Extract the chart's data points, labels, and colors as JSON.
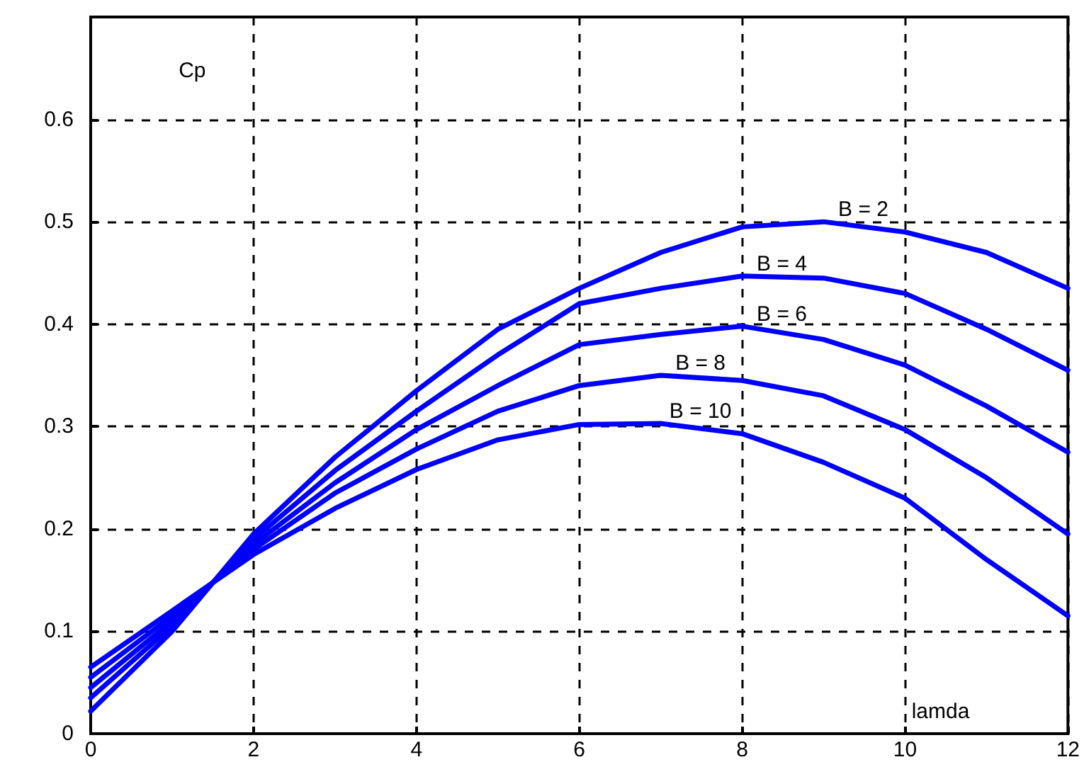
{
  "chart_data": {
    "type": "line",
    "xlabel": "lamda",
    "ylabel": "Cp",
    "x": [
      0,
      1,
      2,
      3,
      4,
      5,
      6,
      7,
      8,
      9,
      10,
      11,
      12
    ],
    "series": [
      {
        "name": "B = 2",
        "color": "#0000ff",
        "values": [
          0.022,
          0.1,
          0.195,
          0.27,
          0.335,
          0.395,
          0.435,
          0.47,
          0.495,
          0.5,
          0.49,
          0.47,
          0.435
        ]
      },
      {
        "name": "B = 4",
        "color": "#0000ff",
        "values": [
          0.035,
          0.105,
          0.19,
          0.257,
          0.315,
          0.37,
          0.42,
          0.435,
          0.447,
          0.445,
          0.43,
          0.395,
          0.355
        ]
      },
      {
        "name": "B = 6",
        "color": "#0000ff",
        "values": [
          0.045,
          0.11,
          0.185,
          0.245,
          0.297,
          0.34,
          0.38,
          0.39,
          0.398,
          0.385,
          0.36,
          0.32,
          0.275
        ]
      },
      {
        "name": "B = 8",
        "color": "#0000ff",
        "values": [
          0.055,
          0.115,
          0.18,
          0.235,
          0.278,
          0.315,
          0.34,
          0.35,
          0.345,
          0.33,
          0.297,
          0.25,
          0.195
        ]
      },
      {
        "name": "B = 10",
        "color": "#0000ff",
        "values": [
          0.065,
          0.12,
          0.175,
          0.22,
          0.258,
          0.287,
          0.302,
          0.303,
          0.293,
          0.265,
          0.23,
          0.17,
          0.115
        ]
      }
    ],
    "xlim": [
      0,
      12
    ],
    "xticks": [
      0,
      2,
      4,
      6,
      8,
      10,
      12
    ],
    "ylim": [
      0,
      0.7
    ],
    "yticks": [
      0,
      0.1,
      0.2,
      0.3,
      0.4,
      0.5,
      0.6
    ],
    "grid": true,
    "marker": "none",
    "line_style": "solid"
  }
}
